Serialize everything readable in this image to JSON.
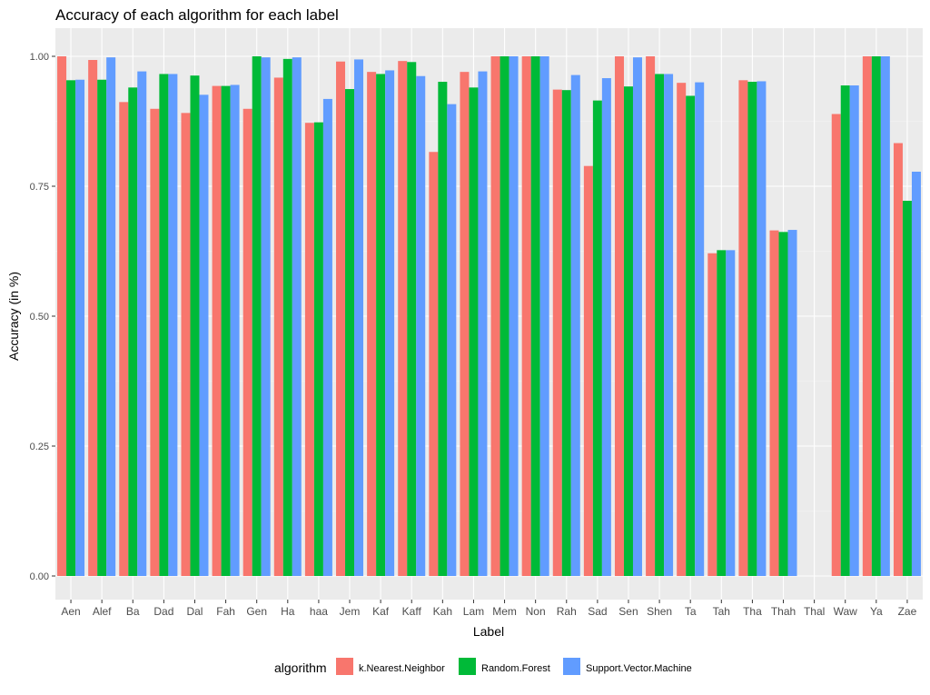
{
  "chart_data": {
    "type": "bar",
    "title": "Accuracy of each algorithm for each label",
    "xlabel": "Label",
    "ylabel": "Accuracy (in %)",
    "ylim": [
      0,
      1.05
    ],
    "yticks": [
      "0.00",
      "0.25",
      "0.50",
      "0.75",
      "1.00"
    ],
    "ytick_values": [
      0,
      0.25,
      0.5,
      0.75,
      1.0
    ],
    "grid": true,
    "legend_position": "bottom",
    "legend_title": "algorithm",
    "categories": [
      "Aen",
      "Alef",
      "Ba",
      "Dad",
      "Dal",
      "Fah",
      "Gen",
      "Ha",
      "haa",
      "Jem",
      "Kaf",
      "Kaff",
      "Kah",
      "Lam",
      "Mem",
      "Non",
      "Rah",
      "Sad",
      "Sen",
      "Shen",
      "Ta",
      "Tah",
      "Tha",
      "Thah",
      "Thal",
      "Waw",
      "Ya",
      "Zae"
    ],
    "series": [
      {
        "name": "k.Nearest.Neighbor",
        "color": "#F8766D",
        "values": [
          1.0,
          0.993,
          0.912,
          0.899,
          0.891,
          0.943,
          0.899,
          0.959,
          0.872,
          0.99,
          0.97,
          0.991,
          0.816,
          0.97,
          1.0,
          1.0,
          0.936,
          0.789,
          1.0,
          1.0,
          0.949,
          0.621,
          0.954,
          0.665,
          0,
          0.889,
          1.0,
          0.833
        ]
      },
      {
        "name": "Random.Forest",
        "color": "#00BA38",
        "values": [
          0.954,
          0.955,
          0.94,
          0.966,
          0.963,
          0.943,
          1.0,
          0.995,
          0.873,
          0.937,
          0.966,
          0.989,
          0.951,
          0.94,
          1.0,
          1.0,
          0.935,
          0.915,
          0.942,
          0.966,
          0.924,
          0.627,
          0.951,
          0.662,
          0,
          0.944,
          1.0,
          0.722
        ]
      },
      {
        "name": "Support.Vector.Machine",
        "color": "#619CFF",
        "values": [
          0.955,
          0.998,
          0.971,
          0.966,
          0.926,
          0.945,
          0.998,
          0.998,
          0.918,
          0.994,
          0.973,
          0.962,
          0.908,
          0.971,
          1.0,
          1.0,
          0.964,
          0.958,
          0.998,
          0.966,
          0.95,
          0.627,
          0.952,
          0.666,
          0,
          0.944,
          1.0,
          0.778
        ]
      }
    ]
  }
}
